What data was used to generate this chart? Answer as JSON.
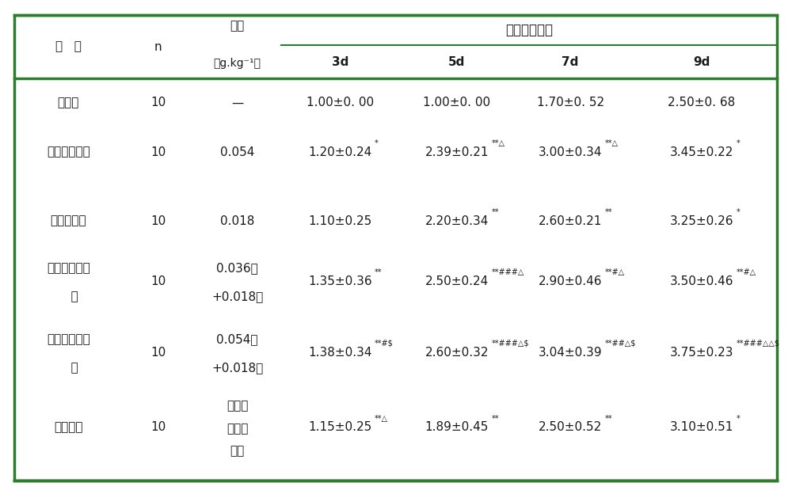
{
  "title": "溃疡程度评分",
  "col_headers": [
    "组   别",
    "n",
    "剂量\n（g.kg⁻¹）",
    "3d",
    "5d",
    "7d",
    "9d"
  ],
  "rows": [
    {
      "group": "对照组",
      "n": "10",
      "dose": "—",
      "d3": "1.00±0. 00",
      "d3_sup": "",
      "d5": "1.00±0. 00",
      "d5_sup": "",
      "d7": "1.70±0. 52",
      "d7_sup": "",
      "d9": "2.50±0. 68",
      "d9_sup": ""
    },
    {
      "group": "己酮可可碱组",
      "n": "10",
      "dose": "0.054",
      "d3": "1.20±0.24",
      "d3_sup": "*",
      "d5": "2.39±0.21",
      "d5_sup": "**△",
      "d7": "3.00±0.34",
      "d7_sup": "**△",
      "d9": "3.45±0.22",
      "d9_sup": "*"
    },
    {
      "group": "卡络磺钠组",
      "n": "10",
      "dose": "0.018",
      "d3": "1.10±0.25",
      "d3_sup": "",
      "d5": "2.20±0.34",
      "d5_sup": "**",
      "d7": "2.60±0.21",
      "d7_sup": "**",
      "d9": "3.25±0.26",
      "d9_sup": "*"
    },
    {
      "group": "组合物复方低\n   组",
      "n": "10",
      "dose": "0.036已\n+0.018卡",
      "d3": "1.35±0.36",
      "d3_sup": "**",
      "d5": "2.50±0.24",
      "d5_sup": "**###△",
      "d7": "2.90±0.46",
      "d7_sup": "**#△",
      "d9": "3.50±0.46",
      "d9_sup": "**#△"
    },
    {
      "group": "组合物复方高\n   组",
      "n": "10",
      "dose": "0.054已\n+0.018卡",
      "d3": "1.38±0.34",
      "d3_sup": "**#$",
      "d5": "2.60±0.32",
      "d5_sup": "**###△$",
      "d7": "3.04±0.39",
      "d7_sup": "**##△$",
      "d9": "3.75±0.23",
      "d9_sup": "**###△△$"
    },
    {
      "group": "马应龙组",
      "n": "10",
      "dose": "马应龙\n麝香痔\n疮膏",
      "d3": "1.15±0.25",
      "d3_sup": "**△",
      "d5": "1.89±0.45",
      "d5_sup": "**",
      "d7": "2.50±0.52",
      "d7_sup": "**",
      "d9": "3.10±0.51",
      "d9_sup": "*"
    }
  ],
  "border_color": "#2e7d2e",
  "header_line_color": "#2e7d2e",
  "bg_color": "#ffffff",
  "text_color": "#1a1a1a",
  "font_size": 11,
  "sup_font_size": 7
}
